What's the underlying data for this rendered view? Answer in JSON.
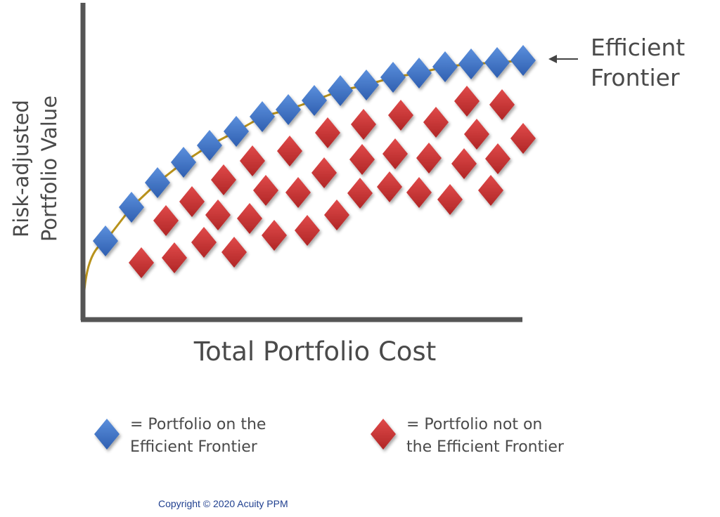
{
  "y_axis_label": [
    "Risk-adjusted",
    "Portfolio Value"
  ],
  "x_axis_label": "Total Portfolio Cost",
  "annotation": [
    "Efficient",
    "Frontier"
  ],
  "legend": [
    {
      "lines": [
        "= Portfolio on the",
        "Efficient Frontier"
      ]
    },
    {
      "lines": [
        "= Portfolio not on",
        "the Efficient Frontier"
      ]
    }
  ],
  "copyright": "Copyright © 2020 Acuity PPM"
}
